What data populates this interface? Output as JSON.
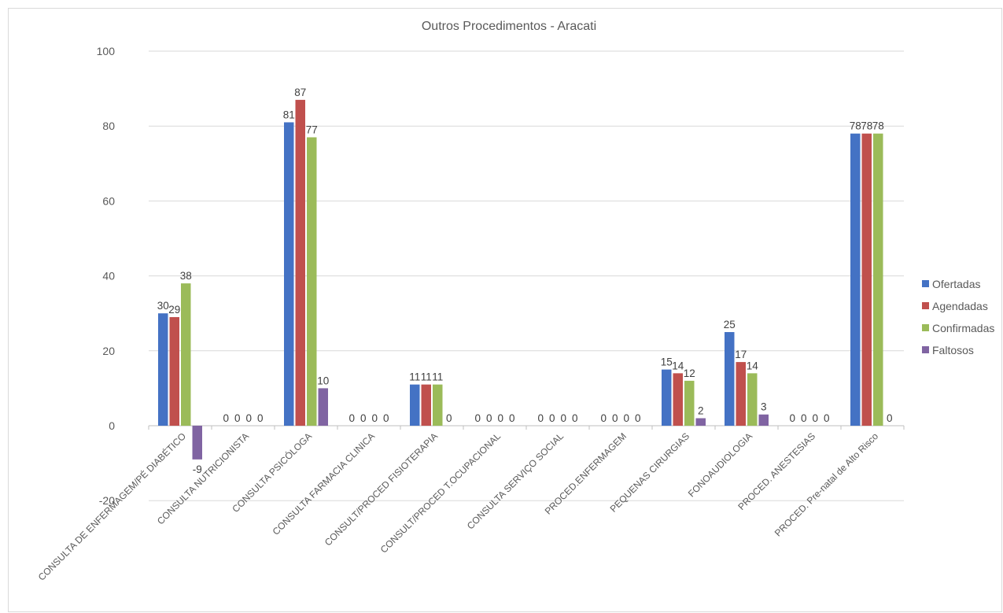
{
  "chart_data": {
    "type": "bar",
    "title": "Outros Procedimentos  - Aracati",
    "xlabel": "",
    "ylabel": "",
    "ylim": [
      -20,
      100
    ],
    "yticks": [
      -20,
      0,
      20,
      40,
      60,
      80,
      100
    ],
    "grid": true,
    "legend_position": "right",
    "categories": [
      "CONSULTA DE ENFERMAGEM/PÉ DIABÉTICO",
      "CONSULTA NUTRICIONISTA",
      "CONSULTA PSICÓLOGA",
      "CONSULTA FARMACIA CLINICA",
      "CONSULT/PROCED FISIOTERAPIA",
      "CONSULT/PROCED T.OCUPACIONAL",
      "CONSULTA SERVIÇO SOCIAL",
      "PROCED.ENFERMAGEM",
      "PEQUENAS CIRURGIAS",
      "FONOAUDIOLOGIA",
      "PROCED. ANESTESIAS",
      "PROCED. Pre-natal de Alto Risco"
    ],
    "series": [
      {
        "name": "Ofertadas",
        "color": "#4472c4",
        "values": [
          30,
          0,
          81,
          0,
          11,
          0,
          0,
          0,
          15,
          25,
          0,
          78
        ]
      },
      {
        "name": "Agendadas",
        "color": "#c0504d",
        "values": [
          29,
          0,
          87,
          0,
          11,
          0,
          0,
          0,
          14,
          17,
          0,
          78
        ]
      },
      {
        "name": "Confirmadas",
        "color": "#9bbb59",
        "values": [
          38,
          0,
          77,
          0,
          11,
          0,
          0,
          0,
          12,
          14,
          0,
          78
        ]
      },
      {
        "name": "Faltosos",
        "color": "#8064a2",
        "values": [
          -9,
          0,
          10,
          0,
          0,
          0,
          0,
          0,
          2,
          3,
          0,
          0
        ]
      }
    ]
  }
}
